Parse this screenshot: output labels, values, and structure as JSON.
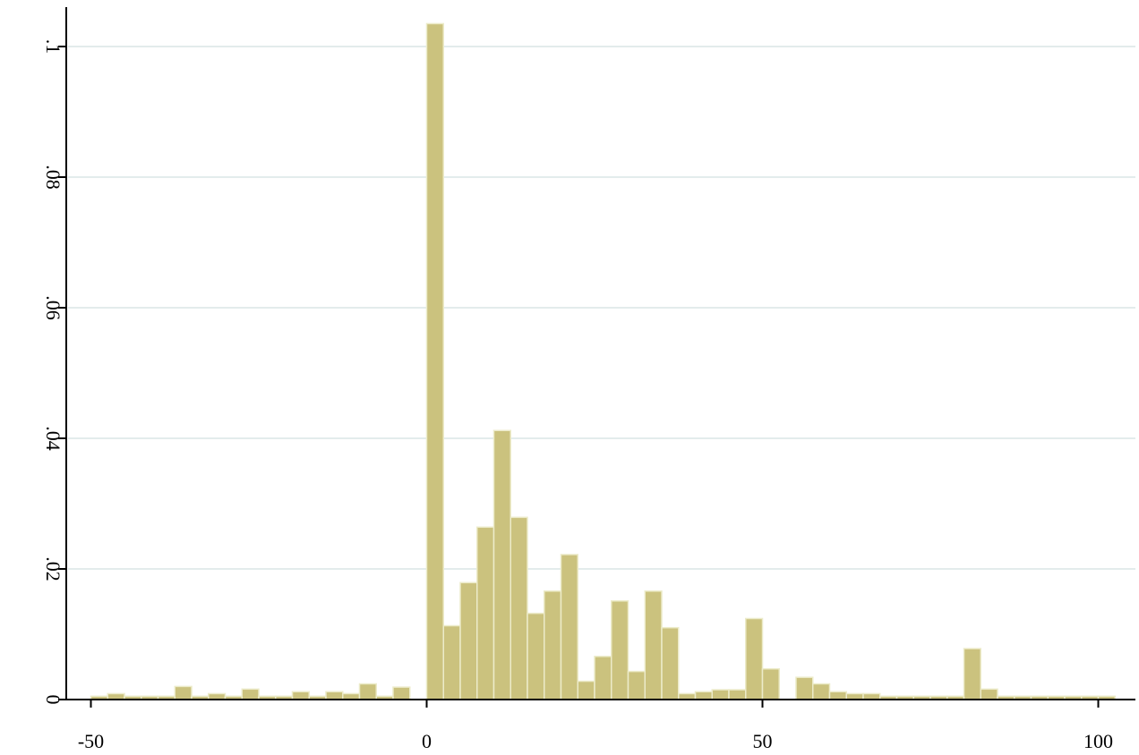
{
  "chart_data": {
    "type": "bar",
    "title": "",
    "xlabel": "",
    "ylabel": "",
    "bar_color": "#cbc27e",
    "bar_edge_color": "#ecebc9",
    "grid_color": "#e3ecec",
    "grid": "horizontal",
    "xlim": [
      -52.5,
      104
    ],
    "ylim": [
      0,
      0.106
    ],
    "x_ticks": [
      -50,
      0,
      50,
      100
    ],
    "x_tick_labels": [
      "-50",
      "0",
      "50",
      "100"
    ],
    "y_ticks": [
      0,
      0.02,
      0.04,
      0.06,
      0.08,
      0.1
    ],
    "y_tick_labels": [
      "0",
      ".02",
      ".04",
      ".06",
      ".08",
      ".1"
    ],
    "bin_width": 2.5,
    "bins": [
      {
        "x": -50.0,
        "y": 0.0005
      },
      {
        "x": -47.5,
        "y": 0.0009
      },
      {
        "x": -45.0,
        "y": 0.0005
      },
      {
        "x": -42.5,
        "y": 0.0005
      },
      {
        "x": -40.0,
        "y": 0.0005
      },
      {
        "x": -37.5,
        "y": 0.002
      },
      {
        "x": -35.0,
        "y": 0.0005
      },
      {
        "x": -32.5,
        "y": 0.0009
      },
      {
        "x": -30.0,
        "y": 0.0005
      },
      {
        "x": -27.5,
        "y": 0.0016
      },
      {
        "x": -25.0,
        "y": 0.0005
      },
      {
        "x": -22.5,
        "y": 0.0005
      },
      {
        "x": -20.0,
        "y": 0.0012
      },
      {
        "x": -17.5,
        "y": 0.0005
      },
      {
        "x": -15.0,
        "y": 0.0012
      },
      {
        "x": -12.5,
        "y": 0.0009
      },
      {
        "x": -10.0,
        "y": 0.0024
      },
      {
        "x": -7.5,
        "y": 0.0005
      },
      {
        "x": -5.0,
        "y": 0.0019
      },
      {
        "x": 0.0,
        "y": 0.1035
      },
      {
        "x": 2.5,
        "y": 0.0113
      },
      {
        "x": 5.0,
        "y": 0.0179
      },
      {
        "x": 7.5,
        "y": 0.0264
      },
      {
        "x": 10.0,
        "y": 0.0412
      },
      {
        "x": 12.5,
        "y": 0.0279
      },
      {
        "x": 15.0,
        "y": 0.0132
      },
      {
        "x": 17.5,
        "y": 0.0166
      },
      {
        "x": 20.0,
        "y": 0.0222
      },
      {
        "x": 22.5,
        "y": 0.0028
      },
      {
        "x": 25.0,
        "y": 0.0066
      },
      {
        "x": 27.5,
        "y": 0.0151
      },
      {
        "x": 30.0,
        "y": 0.0043
      },
      {
        "x": 32.5,
        "y": 0.0166
      },
      {
        "x": 35.0,
        "y": 0.011
      },
      {
        "x": 37.5,
        "y": 0.0009
      },
      {
        "x": 40.0,
        "y": 0.0012
      },
      {
        "x": 42.5,
        "y": 0.0015
      },
      {
        "x": 45.0,
        "y": 0.0015
      },
      {
        "x": 47.5,
        "y": 0.0124
      },
      {
        "x": 50.0,
        "y": 0.0047
      },
      {
        "x": 55.0,
        "y": 0.0034
      },
      {
        "x": 57.5,
        "y": 0.0024
      },
      {
        "x": 60.0,
        "y": 0.0012
      },
      {
        "x": 62.5,
        "y": 0.0009
      },
      {
        "x": 65.0,
        "y": 0.0009
      },
      {
        "x": 67.5,
        "y": 0.0005
      },
      {
        "x": 70.0,
        "y": 0.0005
      },
      {
        "x": 72.5,
        "y": 0.0005
      },
      {
        "x": 75.0,
        "y": 0.0005
      },
      {
        "x": 77.5,
        "y": 0.0005
      },
      {
        "x": 80.0,
        "y": 0.0078
      },
      {
        "x": 82.5,
        "y": 0.0016
      },
      {
        "x": 85.0,
        "y": 0.0005
      },
      {
        "x": 87.5,
        "y": 0.0005
      },
      {
        "x": 90.0,
        "y": 0.0005
      },
      {
        "x": 92.5,
        "y": 0.0005
      },
      {
        "x": 95.0,
        "y": 0.0005
      },
      {
        "x": 97.5,
        "y": 0.0005
      },
      {
        "x": 100.0,
        "y": 0.0005
      }
    ]
  }
}
